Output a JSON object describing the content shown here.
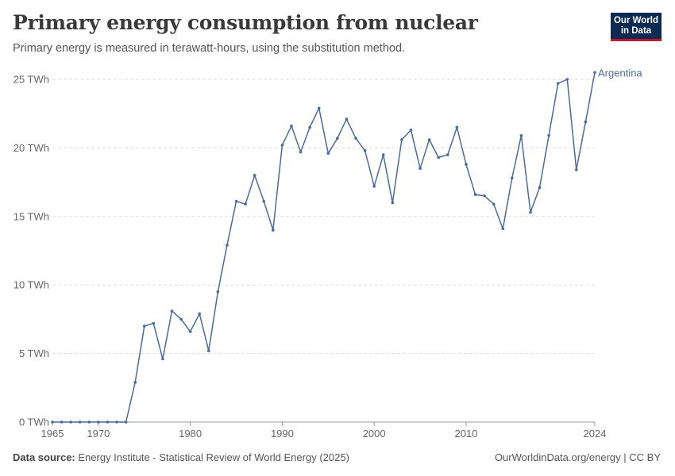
{
  "header": {
    "title": "Primary energy consumption from nuclear",
    "subtitle": "Primary energy is measured in terawatt-hours, using the substitution method."
  },
  "logo": {
    "line1": "Our World",
    "line2": "in Data"
  },
  "footer": {
    "source_label": "Data source:",
    "source_text": "Energy Institute - Statistical Review of World Energy (2025)",
    "right_text": "OurWorldinData.org/energy | CC BY"
  },
  "colors": {
    "series": "#4c6a9c",
    "grid": "#dddddd",
    "axis": "#999999",
    "text": "#666666"
  },
  "chart_data": {
    "type": "line",
    "ylabel": "",
    "xlabel": "",
    "ylim": [
      0,
      25
    ],
    "xlim": [
      1965,
      2024
    ],
    "y_ticks": [
      0,
      5,
      10,
      15,
      20,
      25
    ],
    "y_tick_labels": [
      "0 TWh",
      "5 TWh",
      "10 TWh",
      "15 TWh",
      "20 TWh",
      "25 TWh"
    ],
    "x_ticks": [
      1965,
      1970,
      1980,
      1990,
      2000,
      2010,
      2024
    ],
    "x_tick_labels": [
      "1965",
      "1970",
      "1980",
      "1990",
      "2000",
      "2010",
      "2024"
    ],
    "grid": "horizontal-dashed",
    "series": [
      {
        "name": "Argentina",
        "x": [
          1965,
          1966,
          1967,
          1968,
          1969,
          1970,
          1971,
          1972,
          1973,
          1974,
          1975,
          1976,
          1977,
          1978,
          1979,
          1980,
          1981,
          1982,
          1983,
          1984,
          1985,
          1986,
          1987,
          1988,
          1989,
          1990,
          1991,
          1992,
          1993,
          1994,
          1995,
          1996,
          1997,
          1998,
          1999,
          2000,
          2001,
          2002,
          2003,
          2004,
          2005,
          2006,
          2007,
          2008,
          2009,
          2010,
          2011,
          2012,
          2013,
          2014,
          2015,
          2016,
          2017,
          2018,
          2019,
          2020,
          2021,
          2022,
          2023,
          2024
        ],
        "y": [
          0,
          0,
          0,
          0,
          0,
          0,
          0,
          0,
          0,
          2.9,
          7.0,
          7.2,
          4.6,
          8.1,
          7.5,
          6.6,
          7.9,
          5.2,
          9.5,
          12.9,
          16.1,
          15.9,
          18.0,
          16.1,
          14.0,
          20.2,
          21.6,
          19.7,
          21.5,
          22.9,
          19.6,
          20.7,
          22.1,
          20.7,
          19.8,
          17.2,
          19.5,
          16.0,
          20.6,
          21.3,
          18.5,
          20.6,
          19.3,
          19.5,
          21.5,
          18.8,
          16.6,
          16.5,
          15.9,
          14.1,
          17.8,
          20.9,
          15.3,
          17.1,
          20.9,
          24.7,
          25.0,
          18.4,
          21.9,
          25.5
        ]
      }
    ]
  }
}
